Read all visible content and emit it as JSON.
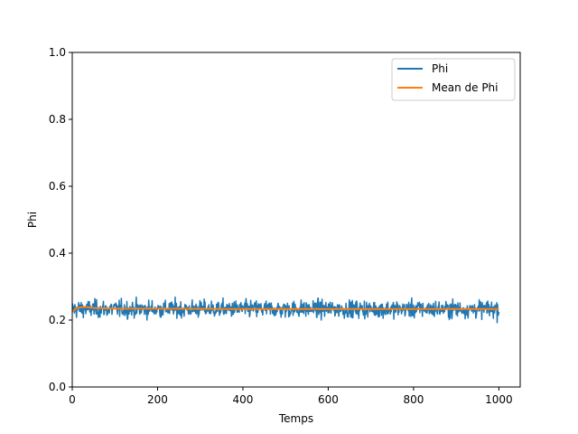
{
  "chart_data": {
    "type": "line",
    "xlabel": "Temps",
    "ylabel": "Phi",
    "xlim": [
      0,
      1050
    ],
    "ylim": [
      0,
      1.0
    ],
    "xticks": [
      0,
      200,
      400,
      600,
      800,
      1000
    ],
    "yticks": [
      0.0,
      0.2,
      0.4,
      0.6,
      0.8,
      1.0
    ],
    "xtick_labels": [
      "0",
      "200",
      "400",
      "600",
      "800",
      "1000"
    ],
    "ytick_labels": [
      "0.0",
      "0.2",
      "0.4",
      "0.6",
      "0.8",
      "1.0"
    ],
    "grid": false,
    "legend_position": "top-right",
    "series": [
      {
        "name": "Phi",
        "color": "#1f77b4",
        "style": "noisy",
        "x_range": [
          0,
          1000
        ],
        "n_points": 1000,
        "center": 0.233,
        "typical_min": 0.19,
        "typical_max": 0.285,
        "extreme_min": 0.18,
        "extreme_max": 0.295
      },
      {
        "name": "Mean de Phi",
        "color": "#ff7f0e",
        "style": "mean",
        "x": [
          0,
          10,
          30,
          50,
          100,
          200,
          400,
          600,
          800,
          1000
        ],
        "y": [
          0.225,
          0.236,
          0.24,
          0.236,
          0.234,
          0.234,
          0.233,
          0.233,
          0.233,
          0.233
        ]
      }
    ]
  }
}
